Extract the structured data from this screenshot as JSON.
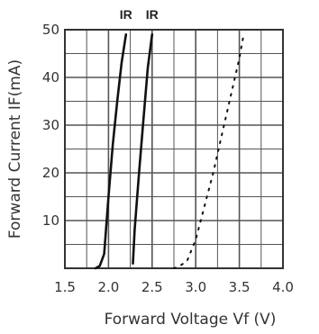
{
  "chart_data": {
    "type": "line",
    "xlabel": "Forward Voltage Vf (V)",
    "ylabel": "Forward Current IF(mA)",
    "xlim": [
      1.5,
      4.0
    ],
    "ylim": [
      0,
      50
    ],
    "x_ticks": [
      "1.5",
      "2.0",
      "2.5",
      "3.0",
      "3.5",
      "4.0"
    ],
    "y_ticks": [
      "10",
      "20",
      "30",
      "40",
      "50"
    ],
    "grid": true,
    "legend": "none",
    "series": [
      {
        "name": "IR",
        "style": "solid",
        "color": "#111111",
        "points": [
          [
            1.85,
            0
          ],
          [
            1.9,
            0.5
          ],
          [
            1.95,
            3
          ],
          [
            2.0,
            15
          ],
          [
            2.05,
            26
          ],
          [
            2.1,
            35
          ],
          [
            2.15,
            43
          ],
          [
            2.2,
            49
          ]
        ]
      },
      {
        "name": "IR",
        "style": "solid",
        "color": "#111111",
        "points": [
          [
            2.28,
            1
          ],
          [
            2.3,
            8
          ],
          [
            2.35,
            20
          ],
          [
            2.4,
            31
          ],
          [
            2.45,
            42
          ],
          [
            2.5,
            49
          ]
        ]
      },
      {
        "name": "",
        "style": "dotted",
        "color": "#111111",
        "points": [
          [
            2.75,
            0
          ],
          [
            2.8,
            0.3
          ],
          [
            2.9,
            1.5
          ],
          [
            3.0,
            6
          ],
          [
            3.1,
            13
          ],
          [
            3.2,
            20
          ],
          [
            3.3,
            28
          ],
          [
            3.4,
            36
          ],
          [
            3.5,
            44
          ],
          [
            3.55,
            49
          ]
        ]
      }
    ]
  }
}
